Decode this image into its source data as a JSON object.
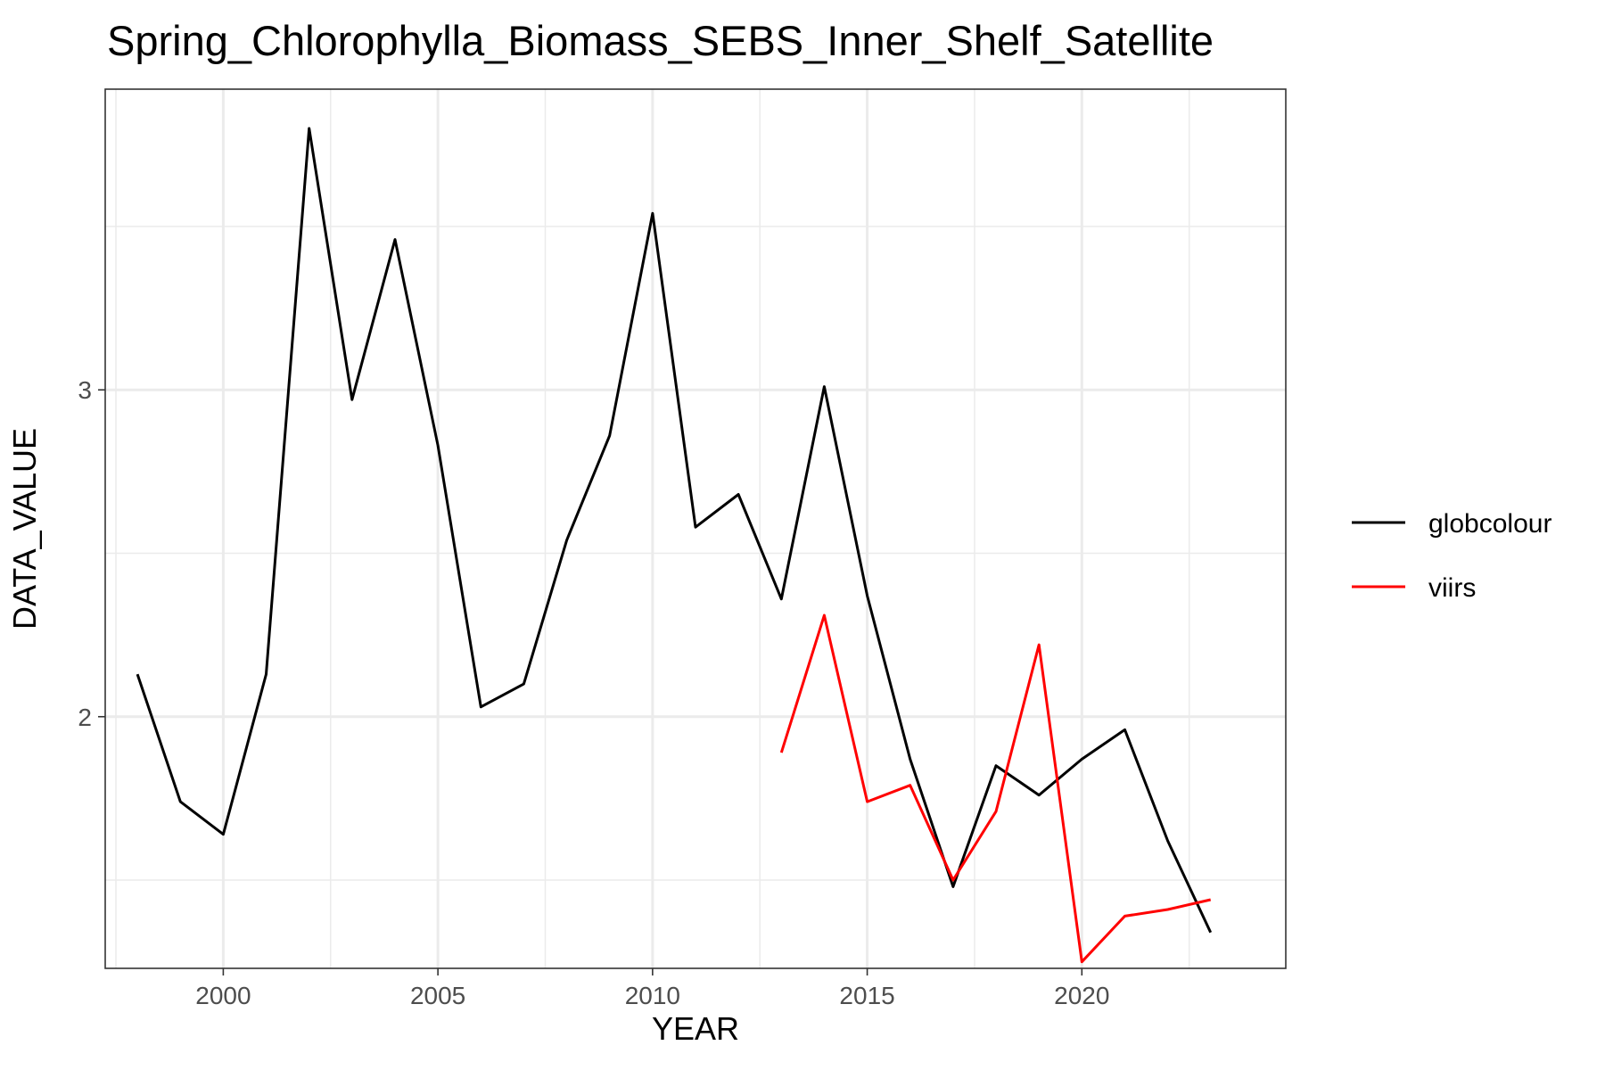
{
  "chart_data": {
    "type": "line",
    "title": "Spring_Chlorophylla_Biomass_SEBS_Inner_Shelf_Satellite",
    "xlabel": "YEAR",
    "ylabel": "DATA_VALUE",
    "xlim": [
      1997.25,
      2024.75
    ],
    "ylim": [
      1.23,
      3.92
    ],
    "x_ticks": [
      2000,
      2005,
      2010,
      2015,
      2020
    ],
    "x_tick_labels": [
      "2000",
      "2005",
      "2010",
      "2015",
      "2020"
    ],
    "y_ticks": [
      2,
      3
    ],
    "y_tick_labels": [
      "2",
      "3"
    ],
    "grid": true,
    "legend_position": "right",
    "series": [
      {
        "name": "globcolour",
        "color": "#000000",
        "x": [
          1998,
          1999,
          2000,
          2001,
          2002,
          2003,
          2004,
          2005,
          2006,
          2007,
          2008,
          2009,
          2010,
          2011,
          2012,
          2013,
          2014,
          2015,
          2016,
          2017,
          2018,
          2019,
          2020,
          2021,
          2022,
          2023
        ],
        "y": [
          2.13,
          1.74,
          1.64,
          2.13,
          3.8,
          2.97,
          3.46,
          2.83,
          2.03,
          2.1,
          2.54,
          2.86,
          3.54,
          2.58,
          2.68,
          2.36,
          3.01,
          2.37,
          1.87,
          1.48,
          1.85,
          1.76,
          1.87,
          1.96,
          1.62,
          1.34
        ]
      },
      {
        "name": "viirs",
        "color": "#ff0000",
        "x": [
          2013,
          2014,
          2015,
          2016,
          2017,
          2018,
          2019,
          2020,
          2021,
          2022,
          2023
        ],
        "y": [
          1.89,
          2.31,
          1.74,
          1.79,
          1.5,
          1.71,
          2.22,
          1.25,
          1.39,
          1.41,
          1.44
        ]
      }
    ]
  }
}
